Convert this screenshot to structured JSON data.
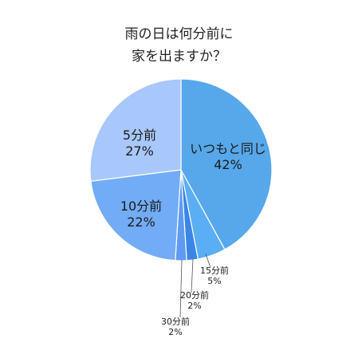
{
  "title_lines": [
    "雨の日は何分前に",
    "家を出ますか？"
  ],
  "chart_data": {
    "type": "pie",
    "title": "雨の日は何分前に家を出ますか？",
    "start_angle_deg": 0,
    "direction": "clockwise",
    "slices": [
      {
        "label": "いつもと同じ",
        "value": 42,
        "value_label": "42%",
        "color": "#56a8ea",
        "label_mode": "inside",
        "label_style": "large"
      },
      {
        "label": "15分前",
        "value": 5,
        "value_label": "5%",
        "color": "#5aaef4",
        "label_mode": "outside",
        "label_style": "small"
      },
      {
        "label": "20分前",
        "value": 2,
        "value_label": "2%",
        "color": "#3a86e6",
        "label_mode": "outside",
        "label_style": "small"
      },
      {
        "label": "30分前",
        "value": 2,
        "value_label": "2%",
        "color": "#5e9bf0",
        "label_mode": "outside",
        "label_style": "small"
      },
      {
        "label": "10分前",
        "value": 22,
        "value_label": "22%",
        "color": "#72acf7",
        "label_mode": "inside",
        "label_style": "large"
      },
      {
        "label": "5分前",
        "value": 27,
        "value_label": "27%",
        "color": "#a8c7fa",
        "label_mode": "inside",
        "label_style": "large"
      }
    ]
  }
}
